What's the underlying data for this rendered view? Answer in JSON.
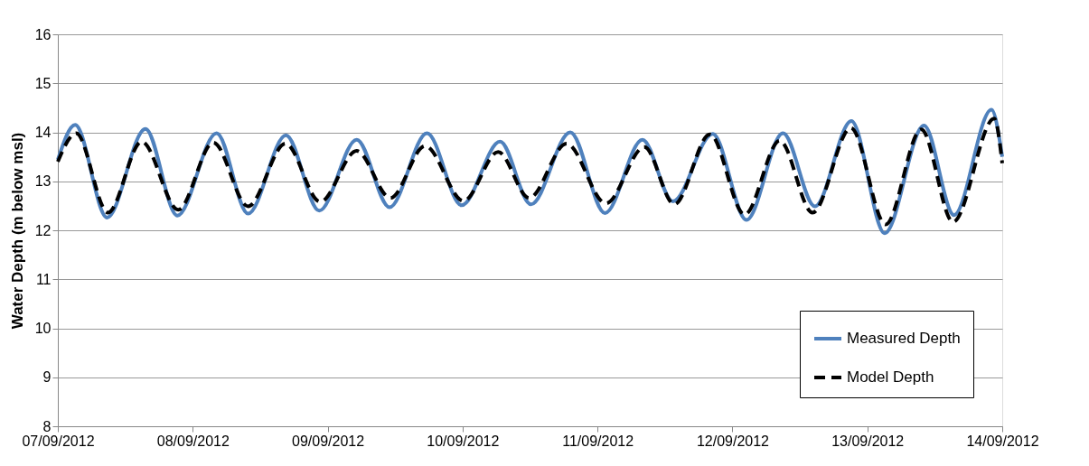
{
  "chart_data": {
    "type": "line",
    "ylabel": "Water Depth (m below msl)",
    "xlim": [
      "2012-09-07",
      "2012-09-14"
    ],
    "xticks": [
      {
        "value": "2012-09-07",
        "label": "07/09/2012"
      },
      {
        "value": "2012-09-08",
        "label": "08/09/2012"
      },
      {
        "value": "2012-09-09",
        "label": "09/09/2012"
      },
      {
        "value": "2012-09-10",
        "label": "10/09/2012"
      },
      {
        "value": "2012-09-11",
        "label": "11/09/2012"
      },
      {
        "value": "2012-09-12",
        "label": "12/09/2012"
      },
      {
        "value": "2012-09-13",
        "label": "13/09/2012"
      },
      {
        "value": "2012-09-14",
        "label": "14/09/2012"
      }
    ],
    "ylim": [
      8,
      16
    ],
    "yticks": [
      8,
      9,
      10,
      11,
      12,
      13,
      14,
      15,
      16
    ],
    "grid": "y",
    "legend": "bottom right",
    "series": [
      {
        "name": "Measured Depth",
        "color": "#4f81bd",
        "line_style": "solid",
        "x": [
          "2012-09-07T00:00",
          "2012-09-07T03:05",
          "2012-09-07T08:45",
          "2012-09-07T15:35",
          "2012-09-07T21:15",
          "2012-09-08T04:15",
          "2012-09-08T09:50",
          "2012-09-08T16:35",
          "2012-09-08T22:30",
          "2012-09-09T05:10",
          "2012-09-09T11:00",
          "2012-09-09T17:40",
          "2012-09-09T23:50",
          "2012-09-10T06:40",
          "2012-09-10T12:10",
          "2012-09-10T19:10",
          "2012-09-11T01:20",
          "2012-09-11T08:00",
          "2012-09-11T13:25",
          "2012-09-11T20:30",
          "2012-09-12T02:30",
          "2012-09-12T09:00",
          "2012-09-12T14:40",
          "2012-09-12T21:10",
          "2012-09-13T03:05",
          "2012-09-13T10:05",
          "2012-09-13T15:25",
          "2012-09-13T22:05",
          "2012-09-14T00:00"
        ],
        "values": [
          13.44,
          14.15,
          12.26,
          14.07,
          12.3,
          13.98,
          12.34,
          13.94,
          12.4,
          13.85,
          12.47,
          13.98,
          12.51,
          13.81,
          12.53,
          14.0,
          12.35,
          13.85,
          12.59,
          13.97,
          12.21,
          13.98,
          12.49,
          14.23,
          11.94,
          14.14,
          12.31,
          14.46,
          13.5
        ]
      },
      {
        "name": "Model Depth",
        "color": "#000000",
        "line_style": "dashed",
        "x": [
          "2012-09-07T00:00",
          "2012-09-07T03:15",
          "2012-09-07T08:55",
          "2012-09-07T14:55",
          "2012-09-07T21:25",
          "2012-09-08T03:40",
          "2012-09-08T09:50",
          "2012-09-08T16:30",
          "2012-09-08T22:40",
          "2012-09-09T05:10",
          "2012-09-09T11:10",
          "2012-09-09T17:20",
          "2012-09-10T00:10",
          "2012-09-10T06:20",
          "2012-09-10T11:50",
          "2012-09-10T18:30",
          "2012-09-11T01:30",
          "2012-09-11T08:20",
          "2012-09-11T13:40",
          "2012-09-11T20:00",
          "2012-09-12T02:10",
          "2012-09-12T08:25",
          "2012-09-12T14:15",
          "2012-09-12T21:05",
          "2012-09-13T03:15",
          "2012-09-13T09:35",
          "2012-09-13T15:15",
          "2012-09-13T22:35",
          "2012-09-14T00:00"
        ],
        "values": [
          13.4,
          13.98,
          12.36,
          13.81,
          12.42,
          13.79,
          12.49,
          13.77,
          12.58,
          13.62,
          12.66,
          13.72,
          12.6,
          13.6,
          12.66,
          13.77,
          12.55,
          13.7,
          12.53,
          13.96,
          12.32,
          13.83,
          12.36,
          14.09,
          12.12,
          14.06,
          12.17,
          14.28,
          13.37
        ]
      }
    ]
  }
}
